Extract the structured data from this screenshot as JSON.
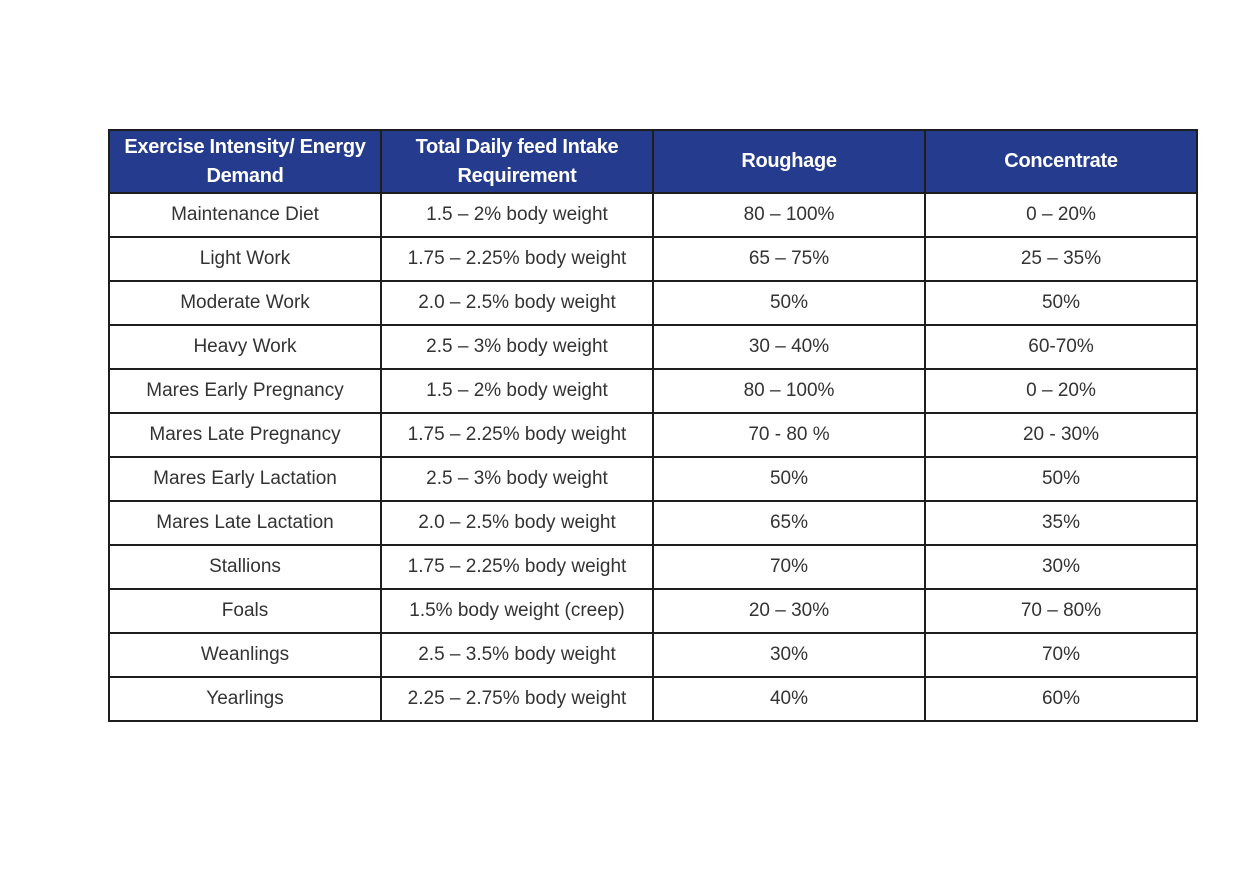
{
  "table": {
    "headers": [
      "Exercise Intensity/ Energy Demand",
      "Total Daily feed Intake Requirement",
      "Roughage",
      "Concentrate"
    ],
    "rows": [
      [
        "Maintenance Diet",
        "1.5 – 2% body weight",
        "80 – 100%",
        "0 – 20%"
      ],
      [
        "Light Work",
        "1.75 – 2.25% body weight",
        "65 – 75%",
        "25 – 35%"
      ],
      [
        "Moderate Work",
        "2.0 – 2.5% body weight",
        "50%",
        "50%"
      ],
      [
        "Heavy Work",
        "2.5 – 3% body weight",
        "30 – 40%",
        "60-70%"
      ],
      [
        "Mares Early Pregnancy",
        "1.5 – 2% body weight",
        "80 – 100%",
        "0 – 20%"
      ],
      [
        "Mares Late Pregnancy",
        "1.75 – 2.25% body weight",
        "70 - 80 %",
        "20 - 30%"
      ],
      [
        "Mares Early Lactation",
        "2.5 – 3% body weight",
        "50%",
        "50%"
      ],
      [
        "Mares Late Lactation",
        "2.0 – 2.5% body weight",
        "65%",
        "35%"
      ],
      [
        "Stallions",
        "1.75 – 2.25% body weight",
        "70%",
        "30%"
      ],
      [
        "Foals",
        "1.5% body weight (creep)",
        "20 – 30%",
        "70 – 80%"
      ],
      [
        "Weanlings",
        "2.5 – 3.5% body weight",
        "30%",
        "70%"
      ],
      [
        "Yearlings",
        "2.25 – 2.75% body weight",
        "40%",
        "60%"
      ]
    ]
  }
}
